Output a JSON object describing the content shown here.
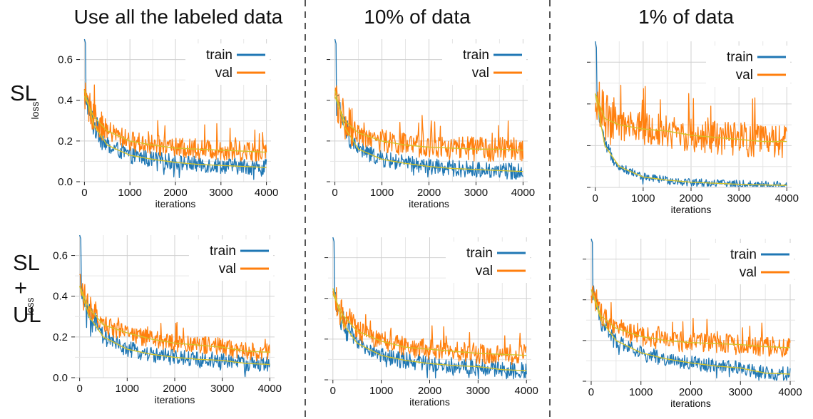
{
  "column_titles": [
    "Use all the labeled data",
    "10% of data",
    "1% of data"
  ],
  "row_labels": {
    "sl": "SL",
    "slul_parts": [
      "SL",
      "+",
      "UL"
    ]
  },
  "colors": {
    "train": "#1f77b4",
    "val": "#ff7f0e",
    "smooth": "#d4c22b",
    "grid": "#d0d0d0",
    "divider": "#555555"
  },
  "chart_data": [
    {
      "type": "line",
      "id": "sl-all",
      "xlabel": "iterations",
      "ylabel": "loss",
      "xlim": [
        -100,
        4100
      ],
      "ylim": [
        0,
        0.7
      ],
      "x_ticks": [
        0,
        1000,
        2000,
        3000,
        4000
      ],
      "y_ticks": [
        0.0,
        0.2,
        0.4,
        0.6
      ],
      "x_ticks_shown": true,
      "y_ticks_shown": true,
      "grid": true,
      "legend_position": "top-right",
      "series": [
        {
          "name": "train",
          "x": [
            0,
            200,
            500,
            1000,
            1500,
            2000,
            2500,
            3000,
            3500,
            4000
          ],
          "y": [
            0.45,
            0.28,
            0.18,
            0.13,
            0.11,
            0.095,
            0.085,
            0.08,
            0.075,
            0.07
          ],
          "noise": 0.04
        },
        {
          "name": "val",
          "x": [
            0,
            200,
            500,
            1000,
            1500,
            2000,
            2500,
            3000,
            3500,
            4000
          ],
          "y": [
            0.42,
            0.32,
            0.25,
            0.2,
            0.18,
            0.165,
            0.16,
            0.155,
            0.15,
            0.145
          ],
          "noise": 0.05
        }
      ]
    },
    {
      "type": "line",
      "id": "sl-10",
      "xlabel": "iterations",
      "ylabel": "",
      "xlim": [
        -100,
        4100
      ],
      "ylim": [
        0,
        0.7
      ],
      "x_ticks": [
        0,
        1000,
        2000,
        3000,
        4000
      ],
      "y_ticks": [
        0.0,
        0.2,
        0.4,
        0.6
      ],
      "x_ticks_shown": true,
      "y_ticks_shown": false,
      "grid": true,
      "legend_position": "top-right",
      "series": [
        {
          "name": "train",
          "x": [
            0,
            200,
            500,
            1000,
            1500,
            2000,
            2500,
            3000,
            3500,
            4000
          ],
          "y": [
            0.45,
            0.27,
            0.16,
            0.11,
            0.09,
            0.075,
            0.065,
            0.06,
            0.055,
            0.05
          ],
          "noise": 0.04
        },
        {
          "name": "val",
          "x": [
            0,
            200,
            500,
            1000,
            1500,
            2000,
            2500,
            3000,
            3500,
            4000
          ],
          "y": [
            0.42,
            0.3,
            0.24,
            0.2,
            0.18,
            0.17,
            0.165,
            0.16,
            0.16,
            0.155
          ],
          "noise": 0.06
        }
      ]
    },
    {
      "type": "line",
      "id": "sl-1",
      "xlabel": "iterations",
      "ylabel": "",
      "xlim": [
        -100,
        4100
      ],
      "ylim": [
        0,
        0.7
      ],
      "x_ticks": [
        0,
        1000,
        2000,
        3000,
        4000
      ],
      "y_ticks": [
        0.0,
        0.2,
        0.4,
        0.6
      ],
      "x_ticks_shown": true,
      "y_ticks_shown": false,
      "grid": true,
      "legend_position": "top-right",
      "series": [
        {
          "name": "train",
          "x": [
            0,
            200,
            500,
            1000,
            1500,
            2000,
            2500,
            3000,
            3500,
            4000
          ],
          "y": [
            0.45,
            0.2,
            0.1,
            0.05,
            0.035,
            0.025,
            0.02,
            0.015,
            0.012,
            0.01
          ],
          "noise": 0.02
        },
        {
          "name": "val",
          "x": [
            0,
            200,
            500,
            1000,
            1500,
            2000,
            2500,
            3000,
            3500,
            4000
          ],
          "y": [
            0.45,
            0.33,
            0.3,
            0.28,
            0.27,
            0.25,
            0.24,
            0.23,
            0.22,
            0.22
          ],
          "noise": 0.08
        }
      ]
    },
    {
      "type": "line",
      "id": "slul-all",
      "xlabel": "iterations",
      "ylabel": "loss",
      "xlim": [
        -100,
        4100
      ],
      "ylim": [
        0,
        0.7
      ],
      "x_ticks": [
        0,
        1000,
        2000,
        3000,
        4000
      ],
      "y_ticks": [
        0.0,
        0.2,
        0.4,
        0.6
      ],
      "x_ticks_shown": true,
      "y_ticks_shown": true,
      "grid": true,
      "legend_position": "top-right",
      "series": [
        {
          "name": "train",
          "x": [
            0,
            200,
            500,
            1000,
            1500,
            2000,
            2500,
            3000,
            3500,
            4000
          ],
          "y": [
            0.45,
            0.3,
            0.2,
            0.14,
            0.115,
            0.1,
            0.09,
            0.085,
            0.07,
            0.065
          ],
          "noise": 0.04
        },
        {
          "name": "val",
          "x": [
            0,
            200,
            500,
            1000,
            1500,
            2000,
            2500,
            3000,
            3500,
            4000
          ],
          "y": [
            0.45,
            0.34,
            0.26,
            0.22,
            0.19,
            0.17,
            0.16,
            0.15,
            0.13,
            0.125
          ],
          "noise": 0.045
        }
      ]
    },
    {
      "type": "line",
      "id": "slul-10",
      "xlabel": "iterations",
      "ylabel": "",
      "xlim": [
        -100,
        4100
      ],
      "ylim": [
        0,
        0.7
      ],
      "x_ticks": [
        0,
        1000,
        2000,
        3000,
        4000
      ],
      "y_ticks": [
        0.0,
        0.2,
        0.4,
        0.6
      ],
      "x_ticks_shown": true,
      "y_ticks_shown": false,
      "grid": true,
      "legend_position": "top-right",
      "series": [
        {
          "name": "train",
          "x": [
            0,
            200,
            500,
            1000,
            1500,
            2000,
            2500,
            3000,
            3500,
            4000
          ],
          "y": [
            0.45,
            0.28,
            0.18,
            0.12,
            0.095,
            0.08,
            0.07,
            0.065,
            0.05,
            0.045
          ],
          "noise": 0.04
        },
        {
          "name": "val",
          "x": [
            0,
            200,
            500,
            1000,
            1500,
            2000,
            2500,
            3000,
            3500,
            4000
          ],
          "y": [
            0.42,
            0.32,
            0.24,
            0.19,
            0.16,
            0.15,
            0.14,
            0.13,
            0.125,
            0.12
          ],
          "noise": 0.05
        }
      ]
    },
    {
      "type": "line",
      "id": "slul-1",
      "xlabel": "iterations",
      "ylabel": "",
      "xlim": [
        -100,
        4100
      ],
      "ylim": [
        0,
        0.7
      ],
      "x_ticks": [
        0,
        1000,
        2000,
        3000,
        4000
      ],
      "y_ticks": [
        0.0,
        0.2,
        0.4,
        0.6
      ],
      "x_ticks_shown": true,
      "y_ticks_shown": false,
      "grid": true,
      "legend_position": "top-right",
      "series": [
        {
          "name": "train",
          "x": [
            0,
            200,
            500,
            1000,
            1500,
            2000,
            2500,
            3000,
            3500,
            4000
          ],
          "y": [
            0.45,
            0.3,
            0.2,
            0.14,
            0.11,
            0.09,
            0.075,
            0.065,
            0.04,
            0.035
          ],
          "noise": 0.035
        },
        {
          "name": "val",
          "x": [
            0,
            200,
            500,
            1000,
            1500,
            2000,
            2500,
            3000,
            3500,
            4000
          ],
          "y": [
            0.45,
            0.32,
            0.26,
            0.22,
            0.2,
            0.19,
            0.185,
            0.18,
            0.17,
            0.165
          ],
          "noise": 0.05
        }
      ]
    }
  ]
}
